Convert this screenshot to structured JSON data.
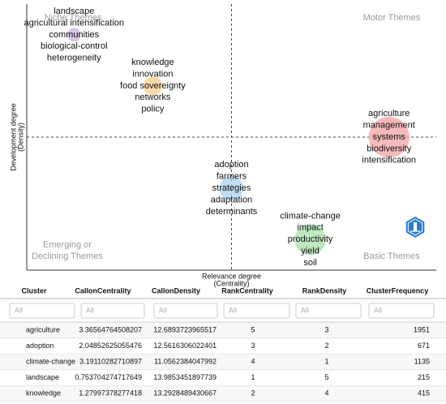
{
  "chart_data": {
    "type": "scatter",
    "x_label": "Relevance degree",
    "x_label_sub": "(Centrality)",
    "y_label": "Development degree",
    "y_label_sub": "(Density)",
    "quadrants": {
      "top_left": "Niche Themes",
      "top_right": "Motor Themes",
      "bottom_left": [
        "Emerging or",
        "Declining Themes"
      ],
      "bottom_right": "Basic Themes"
    },
    "xlim": [
      0.4,
      5.6
    ],
    "ylim": [
      0.4,
      5.6
    ],
    "vline": 3,
    "hline": 3,
    "series": [
      {
        "words": [
          "agriculture",
          "management",
          "systems",
          "biodiversity",
          "intensification"
        ],
        "color": "#f4a3a3"
      },
      {
        "words": [
          "adoption",
          "farmers",
          "strategies",
          "adaptation",
          "determinants"
        ],
        "color": "#a9d0ec"
      },
      {
        "words": [
          "climate-change",
          "impact",
          "productivity",
          "yield",
          "soil"
        ],
        "color": "#a7dfa8"
      },
      {
        "words": [
          "landscape",
          "agricultural intensification",
          "communities",
          "biological-control",
          "heterogeneity"
        ],
        "color": "#c8b0dc"
      },
      {
        "words": [
          "knowledge",
          "innovation",
          "food sovereignty",
          "networks",
          "policy"
        ],
        "color": "#f8cc8e"
      }
    ]
  },
  "table": {
    "columns": [
      "Cluster",
      "CallonCentrality",
      "CallonDensity",
      "RankCentrality",
      "RankDensity",
      "ClusterFrequency"
    ],
    "filter_placeholder": "All",
    "rows": [
      [
        "agriculture",
        3.36564764508207,
        12.6893723965517,
        5,
        3,
        1951
      ],
      [
        "adoption",
        2.04852625055476,
        12.5616306022401,
        3,
        2,
        671
      ],
      [
        "climate-change",
        3.19110282710897,
        11.0562384047992,
        4,
        1,
        1135
      ],
      [
        "landscape",
        0.753704274717649,
        13.9853451897739,
        1,
        5,
        215
      ],
      [
        "knowledge",
        1.27997378277418,
        13.2928489430667,
        2,
        4,
        415
      ]
    ]
  }
}
